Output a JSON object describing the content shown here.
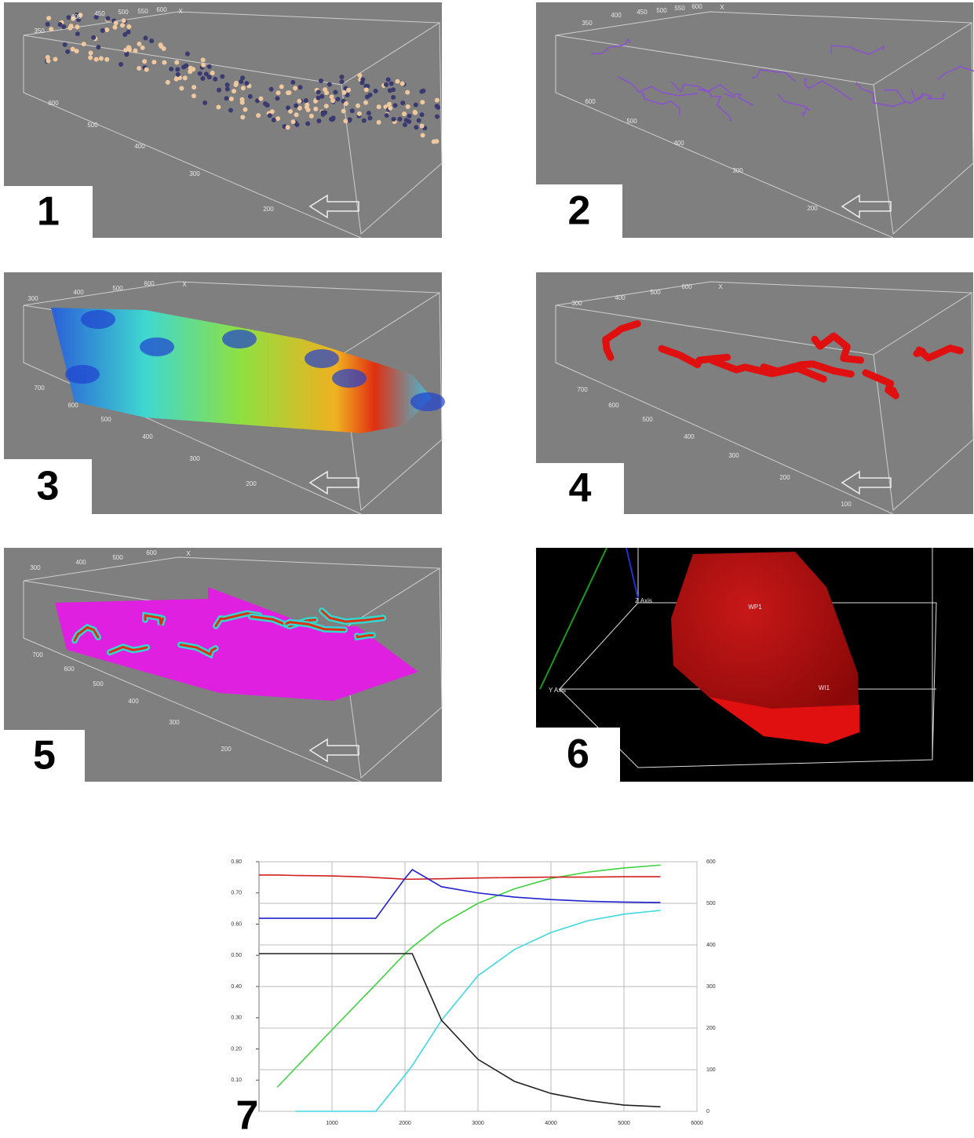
{
  "panels": [
    {
      "label": "1",
      "texts": [
        "350",
        "400",
        "450",
        "500",
        "550",
        "600",
        "X",
        "600",
        "500",
        "400",
        "300",
        "200"
      ]
    },
    {
      "label": "2",
      "texts": [
        "350",
        "400",
        "450",
        "500",
        "550",
        "600",
        "X",
        "600",
        "500",
        "400",
        "300",
        "200"
      ]
    },
    {
      "label": "3",
      "texts": [
        "300",
        "400",
        "500",
        "600",
        "X",
        "700",
        "600",
        "500",
        "400",
        "300",
        "200"
      ]
    },
    {
      "label": "4",
      "texts": [
        "300",
        "400",
        "500",
        "600",
        "X",
        "700",
        "600",
        "500",
        "400",
        "300",
        "200",
        "100"
      ]
    },
    {
      "label": "5",
      "texts": [
        "300",
        "400",
        "500",
        "600",
        "X",
        "700",
        "600",
        "500",
        "400",
        "300",
        "200"
      ]
    },
    {
      "label": "6",
      "texts": [
        "Z Axis",
        "Y Axis",
        "WP1",
        "WI1"
      ]
    },
    {
      "label": "7"
    }
  ],
  "chart_data": {
    "type": "line",
    "x": [
      0,
      250,
      500,
      1000,
      1500,
      1600,
      2000,
      2100,
      2500,
      3000,
      3500,
      4000,
      4500,
      5000,
      5500
    ],
    "xlim": [
      0,
      6000
    ],
    "xticks": [
      1000,
      2000,
      3000,
      4000,
      5000,
      6000
    ],
    "ylim": [
      0,
      0.8
    ],
    "yticks": [
      {
        "value": 0.1,
        "label": "0.10"
      },
      {
        "value": 0.2,
        "label": "0.20"
      },
      {
        "value": 0.3,
        "label": "0.30"
      },
      {
        "value": 0.4,
        "label": "0.40"
      },
      {
        "value": 0.5,
        "label": "0.50"
      },
      {
        "value": 0.6,
        "label": "0.60"
      },
      {
        "value": 0.7,
        "label": "0.70"
      },
      {
        "value": 0.8,
        "label": "0.80"
      }
    ],
    "y2lim": [
      0,
      600
    ],
    "y2ticks": [
      0,
      100,
      200,
      300,
      400,
      500,
      600
    ],
    "grid": true,
    "series": [
      {
        "color": "#3fd23f",
        "axis": "y2",
        "values": [
          null,
          58,
          104,
          196,
          287,
          305,
          379,
          395,
          450,
          500,
          535,
          560,
          575,
          585,
          592
        ]
      },
      {
        "color": "#3fd8e0",
        "axis": "y2",
        "values": [
          null,
          null,
          0,
          0,
          0,
          0,
          87,
          110,
          219,
          326,
          389,
          430,
          458,
          474,
          483
        ]
      },
      {
        "color": "#222222",
        "axis": "y2",
        "values": [
          379,
          379,
          379,
          379,
          379,
          379,
          379,
          379,
          219,
          125,
          72,
          43,
          26,
          15,
          11
        ]
      },
      {
        "color": "#d02020",
        "axis": "y2",
        "values": [
          568,
          568,
          567,
          566,
          563,
          562,
          558,
          558,
          559,
          561,
          562,
          563,
          563,
          564,
          564
        ]
      },
      {
        "color": "#2020d0",
        "axis": "y2",
        "values": [
          464,
          464,
          464,
          464,
          464,
          464,
          560,
          581,
          540,
          525,
          515,
          509,
          505,
          503,
          502
        ]
      }
    ]
  }
}
